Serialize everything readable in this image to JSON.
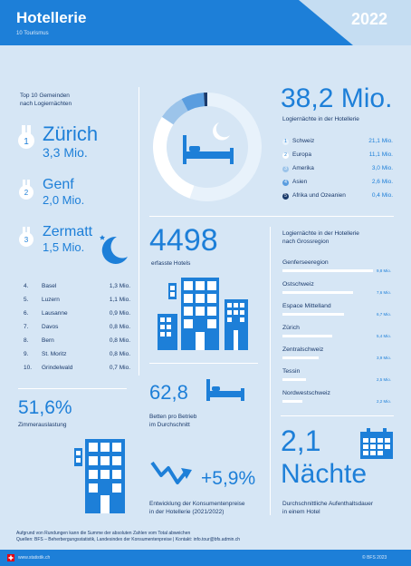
{
  "header": {
    "title": "Hotellerie",
    "subtitle": "10 Tourismus",
    "year": "2022"
  },
  "top10": {
    "heading_line1": "Top 10 Gemeinden",
    "heading_line2": "nach Logiernächten",
    "first": {
      "name": "Zürich",
      "value": "3,3 Mio."
    },
    "second": {
      "name": "Genf",
      "value": "2,0 Mio."
    },
    "third": {
      "name": "Zermatt",
      "value": "1,5 Mio."
    },
    "rows": [
      {
        "rank": "4.",
        "name": "Basel",
        "value": "1,3 Mio."
      },
      {
        "rank": "5.",
        "name": "Luzern",
        "value": "1,1 Mio."
      },
      {
        "rank": "6.",
        "name": "Lausanne",
        "value": "0,9 Mio."
      },
      {
        "rank": "7.",
        "name": "Davos",
        "value": "0,8 Mio."
      },
      {
        "rank": "8.",
        "name": "Bern",
        "value": "0,8 Mio."
      },
      {
        "rank": "9.",
        "name": "St. Moritz",
        "value": "0,8 Mio."
      },
      {
        "rank": "10.",
        "name": "Grindelwald",
        "value": "0,7 Mio."
      }
    ]
  },
  "occupancy": {
    "value": "51,6%",
    "label": "Zimmerauslastung"
  },
  "nights": {
    "total": "38,2 Mio.",
    "label": "Logiernächte in der Hotellerie",
    "legend": [
      {
        "name": "Schweiz",
        "value": "21,1 Mio.",
        "share": 21.1,
        "color": "#e8f2fb"
      },
      {
        "name": "Europa",
        "value": "11,1 Mio.",
        "share": 11.1,
        "color": "#ffffff"
      },
      {
        "name": "Amerika",
        "value": "3,0 Mio.",
        "share": 3.0,
        "color": "#9cc4ea"
      },
      {
        "name": "Asien",
        "value": "2,6 Mio.",
        "share": 2.6,
        "color": "#5a9ddf"
      },
      {
        "name": "Afrika und Ozeanien",
        "value": "0,4 Mio.",
        "share": 0.4,
        "color": "#1a3a6b"
      }
    ],
    "donut_marks": [
      "1",
      "2",
      "3",
      "4",
      "5"
    ]
  },
  "hotels": {
    "value": "4498",
    "label": "erfasste Hotels"
  },
  "beds": {
    "value": "62,8",
    "label_line1": "Betten pro Betrieb",
    "label_line2": "im Durchschnitt"
  },
  "price": {
    "value": "+5,9%",
    "label_line1": "Entwicklung der Konsumentenpreise",
    "label_line2": "in der Hotellerie (2021/2022)"
  },
  "regions": {
    "heading_line1": "Logiernächte in der Hotellerie",
    "heading_line2": "nach Grossregion",
    "items": [
      {
        "name": "Genferseeregion",
        "value": "9,8 Mio.",
        "amount": 9.8
      },
      {
        "name": "Ostschweiz",
        "value": "7,6 Mio.",
        "amount": 7.6
      },
      {
        "name": "Espace Mittelland",
        "value": "6,7 Mio.",
        "amount": 6.7
      },
      {
        "name": "Zürich",
        "value": "5,4 Mio.",
        "amount": 5.4
      },
      {
        "name": "Zentralschweiz",
        "value": "3,9 Mio.",
        "amount": 3.9
      },
      {
        "name": "Tessin",
        "value": "2,5 Mio.",
        "amount": 2.5
      },
      {
        "name": "Nordwestschweiz",
        "value": "2,2 Mio.",
        "amount": 2.2
      }
    ]
  },
  "stay": {
    "value": "2,1",
    "unit": "Nächte",
    "label_line1": "Durchschnittliche Aufenthaltsdauer",
    "label_line2": "in einem Hotel"
  },
  "notes": {
    "line1": "Aufgrund von Rundungen kann die Summe der absoluten Zahlen vom Total abweichen",
    "line2": "Quellen: BFS – Beherbergungsstatistik, Landesindex der Konsumentenpreise | Kontakt: info.tour@bfs.admin.ch"
  },
  "footer": {
    "site": "www.statistik.ch",
    "copyright": "© BFS 2023"
  }
}
